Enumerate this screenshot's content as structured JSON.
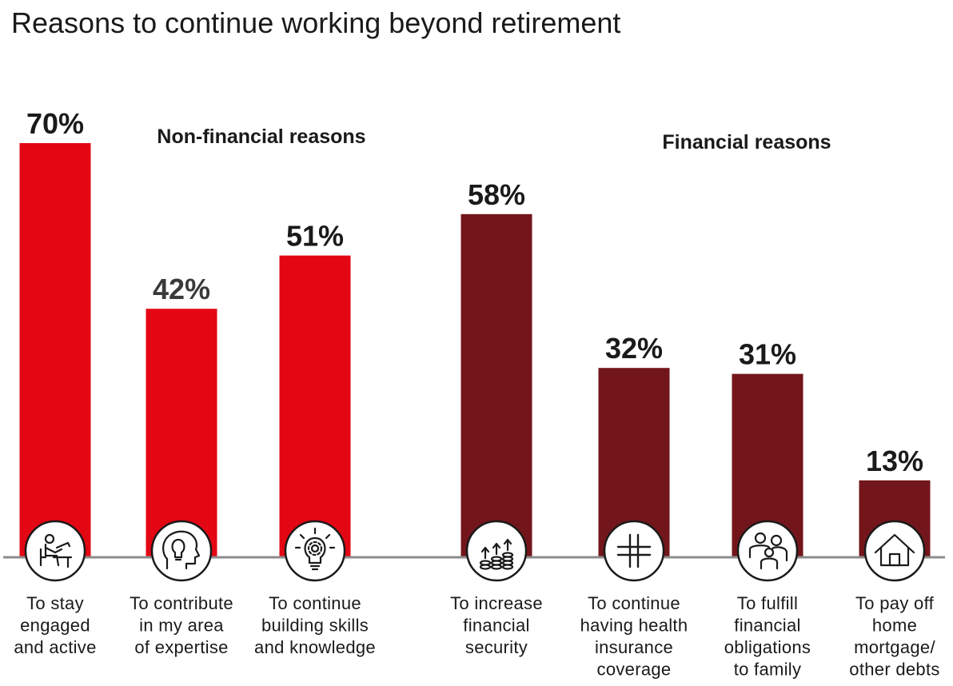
{
  "title": "Reasons to continue working beyond retirement",
  "colors": {
    "non_financial": "#e30613",
    "financial": "#73161b",
    "baseline": "#8c8c8c",
    "text": "#1a1a1a",
    "value_text_alt": "#3a3a3a"
  },
  "chart_data": {
    "type": "bar",
    "title": "Reasons to continue working beyond retirement",
    "unit": "%",
    "ylim": [
      0,
      70
    ],
    "grid": false,
    "groups": [
      {
        "name": "Non-financial reasons",
        "category_indices": [
          0,
          1,
          2
        ]
      },
      {
        "name": "Financial reasons",
        "category_indices": [
          3,
          4,
          5,
          6
        ]
      }
    ],
    "categories": [
      "To stay engaged and active",
      "To contribute in my area of expertise",
      "To continue building skills and knowledge",
      "To increase financial security",
      "To continue having health insurance coverage",
      "To fulfill financial obligations to family",
      "To pay off home mortgage/ other debts"
    ],
    "category_lines": [
      [
        "To stay",
        "engaged",
        "and active"
      ],
      [
        "To contribute",
        "in my area",
        "of expertise"
      ],
      [
        "To continue",
        "building skills",
        "and knowledge"
      ],
      [
        "To increase",
        "financial",
        "security"
      ],
      [
        "To continue",
        "having health",
        "insurance",
        "coverage"
      ],
      [
        "To fulfill",
        "financial",
        "obligations",
        "to family"
      ],
      [
        "To pay off",
        "home",
        "mortgage/",
        "other debts"
      ]
    ],
    "values": [
      70,
      42,
      51,
      58,
      32,
      31,
      13
    ],
    "value_labels": [
      "70%",
      "42%",
      "51%",
      "58%",
      "32%",
      "31%",
      "13%"
    ],
    "icons": [
      "person-at-desk-icon",
      "head-lightbulb-icon",
      "lightbulb-gear-icon",
      "coin-stacks-arrows-icon",
      "medical-cross-icon",
      "family-icon",
      "house-icon"
    ]
  }
}
